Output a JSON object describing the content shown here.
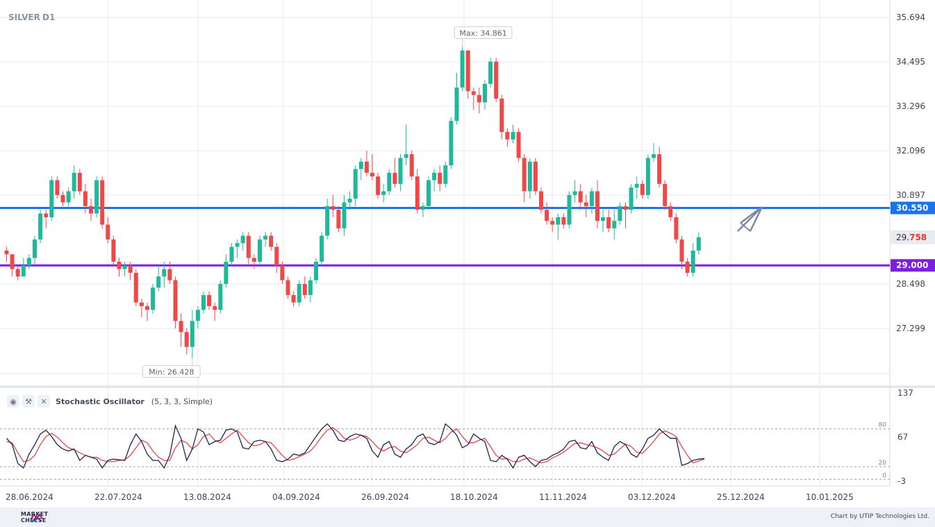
{
  "header": {
    "symbol": "SILVER",
    "timeframe": "D1"
  },
  "price_axis": {
    "ticks": [
      "35.694",
      "34.495",
      "33.296",
      "32.096",
      "30.897",
      "28.498",
      "27.299"
    ]
  },
  "levels": [
    {
      "value": 30.55,
      "label": "30.550",
      "color": "#1a73e8"
    },
    {
      "value": 29.0,
      "label": "29.000",
      "color": "#7b1fe0"
    }
  ],
  "current_price": {
    "prefix": "29.",
    "suffix": "758"
  },
  "markers": {
    "max_label": "Max: 34.861",
    "min_label": "Min: 26.428"
  },
  "date_axis": {
    "labels": [
      "28.06.2024",
      "22.07.2024",
      "13.08.2024",
      "04.09.2024",
      "26.09.2024",
      "18.10.2024",
      "11.11.2024",
      "03.12.2024",
      "25.12.2024",
      "10.01.2025"
    ]
  },
  "indicator": {
    "name": "Stochastic Oscillator",
    "params": "(5, 3, 3, Simple)",
    "axis_ticks": [
      "137",
      "67",
      "-3"
    ],
    "level_labels": [
      "80",
      "20",
      "0"
    ],
    "icons": [
      "eye-icon",
      "wrench-icon",
      "close-icon"
    ]
  },
  "footer": {
    "logo_line1": "MARKET",
    "logo_line2": "CHEESE",
    "credit": "Chart by UTIP Technologies Ltd."
  },
  "colors": {
    "up": "#1fb89a",
    "down": "#ef4848",
    "k_line": "#1c2450",
    "d_line": "#e04848",
    "grid": "#e6e9ef"
  },
  "chart_data": {
    "type": "candlestick",
    "title": "SILVER D1",
    "ylim": [
      26.0,
      35.9
    ],
    "dates_first": "2024-06-28",
    "candles": [
      [
        29.4,
        29.5,
        29.1,
        29.3
      ],
      [
        29.3,
        29.3,
        28.7,
        28.9
      ],
      [
        28.9,
        29.0,
        28.6,
        28.7
      ],
      [
        28.7,
        29.2,
        28.7,
        29.0
      ],
      [
        29.0,
        29.3,
        28.9,
        29.2
      ],
      [
        29.2,
        29.8,
        29.0,
        29.7
      ],
      [
        29.7,
        30.5,
        29.6,
        30.4
      ],
      [
        30.4,
        30.5,
        30.0,
        30.3
      ],
      [
        30.3,
        31.4,
        30.2,
        31.3
      ],
      [
        31.3,
        31.4,
        30.8,
        30.9
      ],
      [
        30.9,
        31.0,
        30.6,
        30.7
      ],
      [
        30.7,
        31.1,
        30.6,
        31.0
      ],
      [
        31.0,
        31.7,
        30.8,
        31.5
      ],
      [
        31.5,
        31.6,
        30.9,
        31.0
      ],
      [
        31.0,
        31.2,
        30.4,
        30.6
      ],
      [
        30.6,
        30.8,
        30.2,
        30.4
      ],
      [
        30.4,
        31.4,
        30.3,
        31.3
      ],
      [
        31.3,
        31.4,
        30.0,
        30.1
      ],
      [
        30.1,
        30.3,
        29.6,
        29.7
      ],
      [
        29.7,
        29.8,
        29.0,
        29.1
      ],
      [
        29.1,
        29.2,
        28.7,
        28.9
      ],
      [
        28.9,
        29.1,
        28.7,
        29.0
      ],
      [
        29.0,
        29.1,
        28.6,
        28.8
      ],
      [
        28.8,
        28.9,
        27.9,
        28.0
      ],
      [
        28.0,
        28.1,
        27.6,
        27.9
      ],
      [
        27.9,
        28.0,
        27.5,
        27.8
      ],
      [
        27.8,
        28.5,
        27.7,
        28.4
      ],
      [
        28.4,
        29.0,
        28.3,
        28.7
      ],
      [
        28.7,
        29.1,
        28.4,
        28.9
      ],
      [
        28.9,
        29.1,
        28.5,
        28.6
      ],
      [
        28.6,
        28.7,
        27.3,
        27.5
      ],
      [
        27.5,
        27.7,
        26.8,
        27.2
      ],
      [
        27.2,
        27.3,
        26.6,
        26.8
      ],
      [
        26.8,
        27.8,
        26.5,
        27.5
      ],
      [
        27.5,
        27.9,
        27.3,
        27.8
      ],
      [
        27.8,
        28.3,
        27.7,
        28.2
      ],
      [
        28.2,
        28.3,
        27.8,
        27.9
      ],
      [
        27.9,
        28.0,
        27.5,
        27.8
      ],
      [
        27.8,
        28.6,
        27.7,
        28.5
      ],
      [
        28.5,
        29.3,
        28.4,
        29.1
      ],
      [
        29.1,
        29.6,
        29.0,
        29.5
      ],
      [
        29.5,
        29.7,
        29.2,
        29.6
      ],
      [
        29.6,
        29.9,
        29.4,
        29.8
      ],
      [
        29.8,
        29.9,
        29.0,
        29.2
      ],
      [
        29.2,
        29.3,
        28.9,
        29.1
      ],
      [
        29.1,
        29.8,
        29.0,
        29.7
      ],
      [
        29.7,
        29.9,
        29.5,
        29.8
      ],
      [
        29.8,
        29.9,
        29.4,
        29.5
      ],
      [
        29.5,
        29.6,
        28.8,
        29.0
      ],
      [
        29.0,
        29.1,
        28.5,
        28.6
      ],
      [
        28.6,
        28.7,
        28.1,
        28.2
      ],
      [
        28.2,
        28.3,
        27.9,
        28.0
      ],
      [
        28.0,
        28.6,
        27.9,
        28.5
      ],
      [
        28.5,
        28.7,
        28.1,
        28.2
      ],
      [
        28.2,
        28.7,
        28.0,
        28.6
      ],
      [
        28.6,
        29.2,
        28.5,
        29.1
      ],
      [
        29.1,
        29.9,
        29.0,
        29.8
      ],
      [
        29.8,
        30.8,
        29.7,
        30.6
      ],
      [
        30.6,
        30.9,
        30.3,
        30.5
      ],
      [
        30.5,
        30.6,
        29.9,
        30.0
      ],
      [
        30.0,
        30.9,
        29.8,
        30.7
      ],
      [
        30.7,
        31.0,
        30.5,
        30.8
      ],
      [
        30.8,
        31.7,
        30.6,
        31.6
      ],
      [
        31.6,
        31.9,
        31.3,
        31.8
      ],
      [
        31.8,
        32.1,
        31.4,
        31.5
      ],
      [
        31.5,
        32.0,
        31.3,
        31.4
      ],
      [
        31.4,
        31.5,
        30.8,
        30.9
      ],
      [
        30.9,
        31.2,
        30.7,
        31.0
      ],
      [
        31.0,
        31.6,
        30.9,
        31.5
      ],
      [
        31.5,
        31.9,
        31.1,
        31.2
      ],
      [
        31.2,
        32.0,
        31.0,
        31.9
      ],
      [
        31.9,
        32.8,
        31.7,
        32.0
      ],
      [
        32.0,
        32.1,
        31.3,
        31.4
      ],
      [
        31.4,
        31.6,
        30.4,
        30.5
      ],
      [
        30.5,
        30.7,
        30.3,
        30.6
      ],
      [
        30.6,
        31.4,
        30.5,
        31.3
      ],
      [
        31.3,
        31.6,
        31.0,
        31.5
      ],
      [
        31.5,
        31.7,
        31.0,
        31.2
      ],
      [
        31.2,
        31.8,
        31.1,
        31.7
      ],
      [
        31.7,
        33.0,
        31.6,
        32.9
      ],
      [
        32.9,
        34.2,
        32.8,
        33.8
      ],
      [
        33.8,
        34.9,
        33.7,
        34.8
      ],
      [
        34.8,
        34.8,
        33.5,
        33.7
      ],
      [
        33.7,
        33.8,
        33.2,
        33.6
      ],
      [
        33.6,
        33.8,
        33.1,
        33.4
      ],
      [
        33.4,
        34.0,
        33.2,
        33.9
      ],
      [
        33.9,
        34.6,
        33.8,
        34.5
      ],
      [
        34.5,
        34.6,
        33.4,
        33.5
      ],
      [
        33.5,
        33.6,
        32.4,
        32.6
      ],
      [
        32.6,
        32.7,
        32.2,
        32.4
      ],
      [
        32.4,
        32.8,
        32.3,
        32.6
      ],
      [
        32.6,
        32.7,
        31.8,
        31.9
      ],
      [
        31.9,
        32.0,
        30.7,
        31.0
      ],
      [
        31.0,
        31.9,
        30.8,
        31.8
      ],
      [
        31.8,
        31.9,
        30.9,
        31.0
      ],
      [
        31.0,
        31.1,
        30.4,
        30.5
      ],
      [
        30.5,
        30.7,
        30.1,
        30.2
      ],
      [
        30.2,
        30.3,
        29.9,
        30.1
      ],
      [
        30.1,
        30.4,
        29.7,
        30.3
      ],
      [
        30.3,
        30.4,
        30.0,
        30.1
      ],
      [
        30.1,
        31.0,
        30.0,
        30.9
      ],
      [
        30.9,
        31.3,
        30.7,
        31.0
      ],
      [
        31.0,
        31.2,
        30.5,
        30.7
      ],
      [
        30.7,
        30.9,
        30.3,
        30.6
      ],
      [
        30.6,
        31.1,
        30.4,
        31.0
      ],
      [
        31.0,
        31.3,
        30.0,
        30.2
      ],
      [
        30.2,
        30.5,
        29.9,
        30.3
      ],
      [
        30.3,
        30.5,
        29.9,
        30.0
      ],
      [
        30.0,
        30.5,
        29.7,
        30.2
      ],
      [
        30.2,
        30.7,
        30.1,
        30.6
      ],
      [
        30.6,
        30.7,
        30.0,
        30.5
      ],
      [
        30.5,
        31.2,
        30.4,
        31.1
      ],
      [
        31.1,
        31.4,
        30.8,
        31.2
      ],
      [
        31.2,
        31.3,
        30.8,
        30.9
      ],
      [
        30.9,
        32.0,
        30.8,
        31.9
      ],
      [
        31.9,
        32.3,
        31.8,
        32.0
      ],
      [
        32.0,
        32.2,
        31.1,
        31.2
      ],
      [
        31.2,
        31.3,
        30.5,
        30.6
      ],
      [
        30.6,
        30.7,
        30.2,
        30.3
      ],
      [
        30.3,
        30.4,
        29.6,
        29.7
      ],
      [
        29.7,
        29.8,
        28.9,
        29.1
      ],
      [
        29.1,
        29.2,
        28.7,
        28.8
      ],
      [
        28.8,
        29.6,
        28.7,
        29.4
      ],
      [
        29.4,
        29.9,
        29.3,
        29.758
      ]
    ],
    "stochastic": {
      "ylim": [
        -3,
        137
      ],
      "levels": [
        80,
        20,
        0
      ],
      "k": [
        65,
        55,
        25,
        18,
        40,
        55,
        72,
        78,
        68,
        55,
        48,
        45,
        48,
        30,
        38,
        35,
        32,
        18,
        30,
        32,
        31,
        30,
        55,
        72,
        60,
        40,
        30,
        30,
        18,
        38,
        85,
        65,
        30,
        48,
        80,
        75,
        55,
        60,
        62,
        78,
        80,
        75,
        50,
        48,
        60,
        62,
        60,
        48,
        30,
        28,
        32,
        40,
        38,
        42,
        55,
        68,
        80,
        88,
        78,
        62,
        60,
        68,
        72,
        70,
        65,
        45,
        35,
        55,
        60,
        40,
        35,
        48,
        55,
        68,
        72,
        58,
        55,
        60,
        88,
        80,
        70,
        50,
        55,
        72,
        65,
        60,
        30,
        28,
        38,
        32,
        18,
        35,
        38,
        28,
        20,
        30,
        32,
        38,
        42,
        48,
        60,
        62,
        50,
        48,
        60,
        42,
        35,
        30,
        52,
        60,
        55,
        40,
        35,
        48,
        65,
        70,
        80,
        72,
        65,
        65,
        22,
        25,
        30,
        32,
        33
      ],
      "d": [
        60,
        58,
        42,
        28,
        30,
        38,
        55,
        68,
        73,
        67,
        58,
        50,
        47,
        42,
        38,
        35,
        35,
        30,
        28,
        28,
        30,
        31,
        38,
        50,
        62,
        58,
        45,
        35,
        30,
        30,
        50,
        62,
        58,
        48,
        55,
        68,
        72,
        62,
        58,
        65,
        72,
        78,
        68,
        58,
        53,
        55,
        60,
        58,
        48,
        38,
        30,
        32,
        36,
        40,
        45,
        55,
        68,
        78,
        82,
        75,
        65,
        62,
        65,
        70,
        68,
        60,
        50,
        45,
        50,
        52,
        45,
        42,
        48,
        55,
        65,
        67,
        62,
        58,
        65,
        75,
        80,
        68,
        58,
        58,
        62,
        65,
        52,
        38,
        32,
        33,
        28,
        28,
        32,
        34,
        30,
        26,
        28,
        34,
        38,
        43,
        50,
        57,
        58,
        55,
        53,
        50,
        45,
        38,
        40,
        48,
        56,
        52,
        43,
        41,
        50,
        60,
        72,
        77,
        73,
        68,
        52,
        38,
        26,
        29,
        32
      ]
    }
  }
}
